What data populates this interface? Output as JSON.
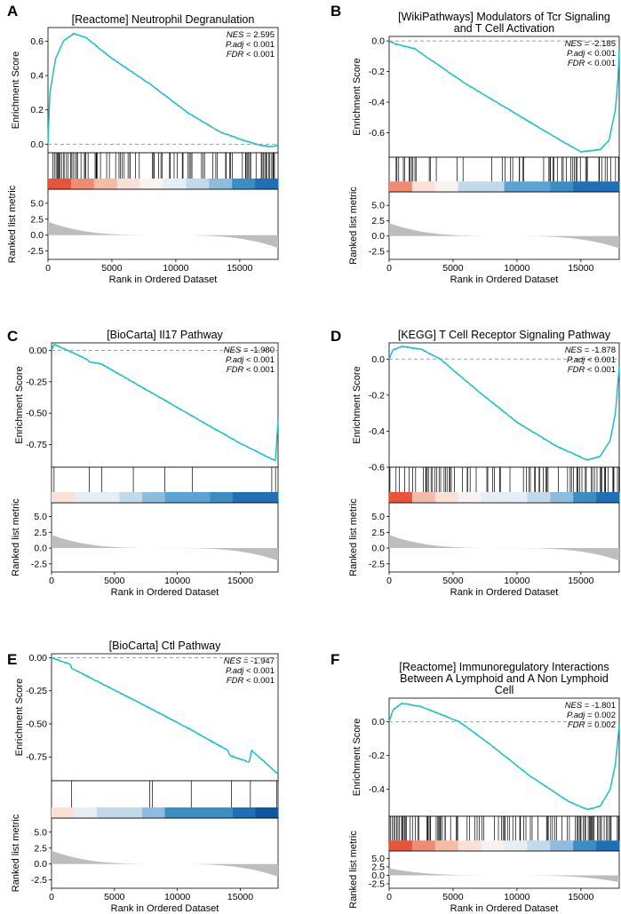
{
  "figure": {
    "x_axis_label": "Rank in Ordered Dataset",
    "es_axis_label": "Enrichment Score",
    "metric_axis_label": "Ranked list metric",
    "x_ticks": [
      0,
      5000,
      10000,
      15000
    ],
    "metric_ticks": [
      5.0,
      2.5,
      0.0,
      -2.5
    ],
    "colors": {
      "curve": "#19C0C7",
      "metric_fill": "#BDBDBD",
      "zero_line": "#9E9E9E",
      "hit": "#000000"
    }
  },
  "chart_data": [
    {
      "type": "line",
      "panel": "A",
      "title_lines": [
        "[Reactome] Neutrophil Degranulation"
      ],
      "stats": {
        "nes_label": "NES",
        "nes": "= 2.595",
        "padj_label": "P.adj",
        "padj": "< 0.001",
        "fdr_label": "FDR",
        "fdr": "< 0.001"
      },
      "xlim": [
        0,
        18000
      ],
      "ylim": [
        -0.05,
        0.68
      ],
      "yticks": [
        0.0,
        0.2,
        0.4,
        0.6
      ],
      "ytick_labels": [
        "0.0",
        "0.2",
        "0.4",
        "0.6"
      ],
      "es_curve": [
        [
          0,
          0
        ],
        [
          150,
          0.3
        ],
        [
          600,
          0.5
        ],
        [
          1200,
          0.6
        ],
        [
          2000,
          0.645
        ],
        [
          3000,
          0.62
        ],
        [
          5000,
          0.5
        ],
        [
          8000,
          0.35
        ],
        [
          11000,
          0.18
        ],
        [
          13500,
          0.07
        ],
        [
          15000,
          0.03
        ],
        [
          16500,
          -0.005
        ],
        [
          17500,
          -0.015
        ],
        [
          18000,
          -0.005
        ]
      ],
      "hits": {
        "seed": 11,
        "density": [
          [
            0,
            0.85
          ],
          [
            1500,
            0.85
          ],
          [
            3000,
            0.65
          ],
          [
            6000,
            0.45
          ],
          [
            9000,
            0.3
          ],
          [
            12000,
            0.3
          ],
          [
            15000,
            0.5
          ],
          [
            18000,
            0.7
          ]
        ]
      },
      "color_bar": [
        "#E8533A",
        "#F08C73",
        "#F6BBA6",
        "#FBE0D5",
        "#F8F3F0",
        "#E4EEF5",
        "#C2D9EA",
        "#8DBCDE",
        "#3D8DC5",
        "#1E6FB5"
      ]
    },
    {
      "type": "line",
      "panel": "B",
      "title_lines": [
        "[WikiPathways] Modulators of Tcr Signaling",
        "and T Cell Activation"
      ],
      "stats": {
        "nes_label": "NES",
        "nes": "= -2.185",
        "padj_label": "P.adj",
        "padj": "< 0.001",
        "fdr_label": "FDR",
        "fdr": "< 0.001"
      },
      "xlim": [
        0,
        18000
      ],
      "ylim": [
        -0.76,
        0.03
      ],
      "yticks": [
        0.0,
        -0.2,
        -0.4,
        -0.6
      ],
      "ytick_labels": [
        "0.0",
        "-0.2",
        "-0.4",
        "-0.6"
      ],
      "es_curve": [
        [
          0,
          0
        ],
        [
          500,
          -0.02
        ],
        [
          2000,
          -0.05
        ],
        [
          2500,
          -0.08
        ],
        [
          6000,
          -0.28
        ],
        [
          10000,
          -0.48
        ],
        [
          13000,
          -0.63
        ],
        [
          15000,
          -0.725
        ],
        [
          16500,
          -0.71
        ],
        [
          17200,
          -0.65
        ],
        [
          17700,
          -0.45
        ],
        [
          17900,
          -0.25
        ],
        [
          18000,
          -0.06
        ]
      ],
      "hits": {
        "seed": 22,
        "density": [
          [
            0,
            0.3
          ],
          [
            3000,
            0.25
          ],
          [
            6000,
            0.1
          ],
          [
            9000,
            0.1
          ],
          [
            12000,
            0.35
          ],
          [
            15000,
            0.5
          ],
          [
            18000,
            0.6
          ]
        ]
      },
      "color_bar": [
        "#F08C73",
        "#FBE0D5",
        "#F8F3F0",
        "#C2D9EA",
        "#C2D9EA",
        "#5BA3D5",
        "#5BA3D5",
        "#3D8DC5",
        "#1E6FB5",
        "#1E6FB5"
      ]
    },
    {
      "type": "line",
      "panel": "C",
      "title_lines": [
        "[BioCarta] Il17 Pathway"
      ],
      "stats": {
        "nes_label": "NES",
        "nes": "= -1.980",
        "padj_label": "P.adj",
        "padj": "< 0.001",
        "fdr_label": "FDR",
        "fdr": "< 0.001"
      },
      "xlim": [
        0,
        18000
      ],
      "ylim": [
        -0.93,
        0.06
      ],
      "yticks": [
        0.0,
        -0.25,
        -0.5,
        -0.75
      ],
      "ytick_labels": [
        "0.00",
        "-0.25",
        "-0.50",
        "-0.75"
      ],
      "es_curve": [
        [
          0,
          0
        ],
        [
          200,
          0.05
        ],
        [
          2800,
          -0.07
        ],
        [
          3000,
          -0.09
        ],
        [
          4000,
          -0.11
        ],
        [
          8000,
          -0.34
        ],
        [
          12000,
          -0.57
        ],
        [
          15000,
          -0.74
        ],
        [
          17800,
          -0.88
        ],
        [
          18000,
          -0.55
        ]
      ],
      "hit_positions": [
        200,
        3000,
        4000,
        6500,
        9000,
        11200,
        17500,
        17800
      ],
      "color_bar": [
        "#FBE0D5",
        "#E4EEF5",
        "#E4EEF5",
        "#C2D9EA",
        "#8DBCDE",
        "#5BA3D5",
        "#5BA3D5",
        "#3D8DC5",
        "#1E6FB5",
        "#1E6FB5"
      ]
    },
    {
      "type": "line",
      "panel": "D",
      "title_lines": [
        "[KEGG] T Cell Receptor Signaling Pathway"
      ],
      "stats": {
        "nes_label": "NES",
        "nes": "= -1.878",
        "padj_label": "P.adj",
        "padj": "< 0.001",
        "fdr_label": "FDR",
        "fdr": "< 0.001"
      },
      "xlim": [
        0,
        18000
      ],
      "ylim": [
        -0.6,
        0.09
      ],
      "yticks": [
        0.0,
        -0.2,
        -0.4,
        -0.6
      ],
      "ytick_labels": [
        "0.0",
        "-0.2",
        "-0.4",
        "-0.6"
      ],
      "es_curve": [
        [
          0,
          0
        ],
        [
          300,
          0.05
        ],
        [
          1000,
          0.07
        ],
        [
          2500,
          0.055
        ],
        [
          4000,
          0.0
        ],
        [
          7000,
          -0.18
        ],
        [
          10000,
          -0.35
        ],
        [
          13000,
          -0.48
        ],
        [
          15500,
          -0.56
        ],
        [
          16500,
          -0.54
        ],
        [
          17300,
          -0.45
        ],
        [
          17700,
          -0.3
        ],
        [
          18000,
          -0.04
        ]
      ],
      "hits": {
        "seed": 44,
        "density": [
          [
            0,
            0.55
          ],
          [
            3000,
            0.5
          ],
          [
            6000,
            0.3
          ],
          [
            9000,
            0.35
          ],
          [
            12000,
            0.45
          ],
          [
            15000,
            0.65
          ],
          [
            18000,
            0.85
          ]
        ]
      },
      "color_bar": [
        "#E8533A",
        "#F6BBA6",
        "#FBE0D5",
        "#F8F3F0",
        "#E4EEF5",
        "#E4EEF5",
        "#C2D9EA",
        "#8DBCDE",
        "#3D8DC5",
        "#1E6FB5"
      ]
    },
    {
      "type": "line",
      "panel": "E",
      "title_lines": [
        "[BioCarta] Ctl Pathway"
      ],
      "stats": {
        "nes_label": "NES",
        "nes": "= -1.947",
        "padj_label": "P.adj",
        "padj": "< 0.001",
        "fdr_label": "FDR",
        "fdr": "< 0.001"
      },
      "xlim": [
        0,
        18000
      ],
      "ylim": [
        -0.93,
        0.03
      ],
      "yticks": [
        0.0,
        -0.25,
        -0.5,
        -0.75
      ],
      "ytick_labels": [
        "0.00",
        "-0.25",
        "-0.50",
        "-0.75"
      ],
      "es_curve": [
        [
          0,
          0
        ],
        [
          1500,
          -0.05
        ],
        [
          1600,
          -0.08
        ],
        [
          7800,
          -0.38
        ],
        [
          11000,
          -0.54
        ],
        [
          14000,
          -0.7
        ],
        [
          14200,
          -0.74
        ],
        [
          15700,
          -0.79
        ],
        [
          15900,
          -0.7
        ],
        [
          18000,
          -0.88
        ]
      ],
      "hit_positions": [
        1600,
        7800,
        8000,
        11100,
        14300,
        15800,
        17900
      ],
      "color_bar": [
        "#FBE0D5",
        "#E4EEF5",
        "#C2D9EA",
        "#C2D9EA",
        "#8DBCDE",
        "#3D8DC5",
        "#3D8DC5",
        "#3D8DC5",
        "#1E6FB5",
        "#0D56A0"
      ]
    },
    {
      "type": "line",
      "panel": "F",
      "title_lines": [
        "[Reactome] Immunoregulatory Interactions",
        "Between A Lymphoid and A Non Lymphoid",
        "Cell"
      ],
      "stats": {
        "nes_label": "NES",
        "nes": "= -1.801",
        "padj_label": "P.adj",
        "padj": "= 0.002",
        "fdr_label": "FDR",
        "fdr": "= 0.002"
      },
      "xlim": [
        0,
        18000
      ],
      "ylim": [
        -0.56,
        0.14
      ],
      "yticks": [
        0.0,
        -0.2,
        -0.4
      ],
      "ytick_labels": [
        "0.0",
        "-0.2",
        "-0.4"
      ],
      "es_curve": [
        [
          0,
          0
        ],
        [
          300,
          0.07
        ],
        [
          1000,
          0.11
        ],
        [
          2500,
          0.09
        ],
        [
          4000,
          0.045
        ],
        [
          5500,
          0.0
        ],
        [
          8000,
          -0.14
        ],
        [
          11000,
          -0.32
        ],
        [
          14000,
          -0.47
        ],
        [
          15500,
          -0.52
        ],
        [
          16500,
          -0.5
        ],
        [
          17300,
          -0.4
        ],
        [
          17700,
          -0.25
        ],
        [
          18000,
          -0.02
        ]
      ],
      "hits": {
        "seed": 66,
        "density": [
          [
            0,
            0.8
          ],
          [
            3000,
            0.6
          ],
          [
            6000,
            0.35
          ],
          [
            9000,
            0.35
          ],
          [
            12000,
            0.45
          ],
          [
            15000,
            0.7
          ],
          [
            18000,
            0.85
          ]
        ]
      },
      "color_bar": [
        "#E8533A",
        "#F08C73",
        "#F6BBA6",
        "#FBE0D5",
        "#F8F3F0",
        "#E4EEF5",
        "#C2D9EA",
        "#8DBCDE",
        "#3D8DC5",
        "#1E6FB5"
      ]
    }
  ]
}
